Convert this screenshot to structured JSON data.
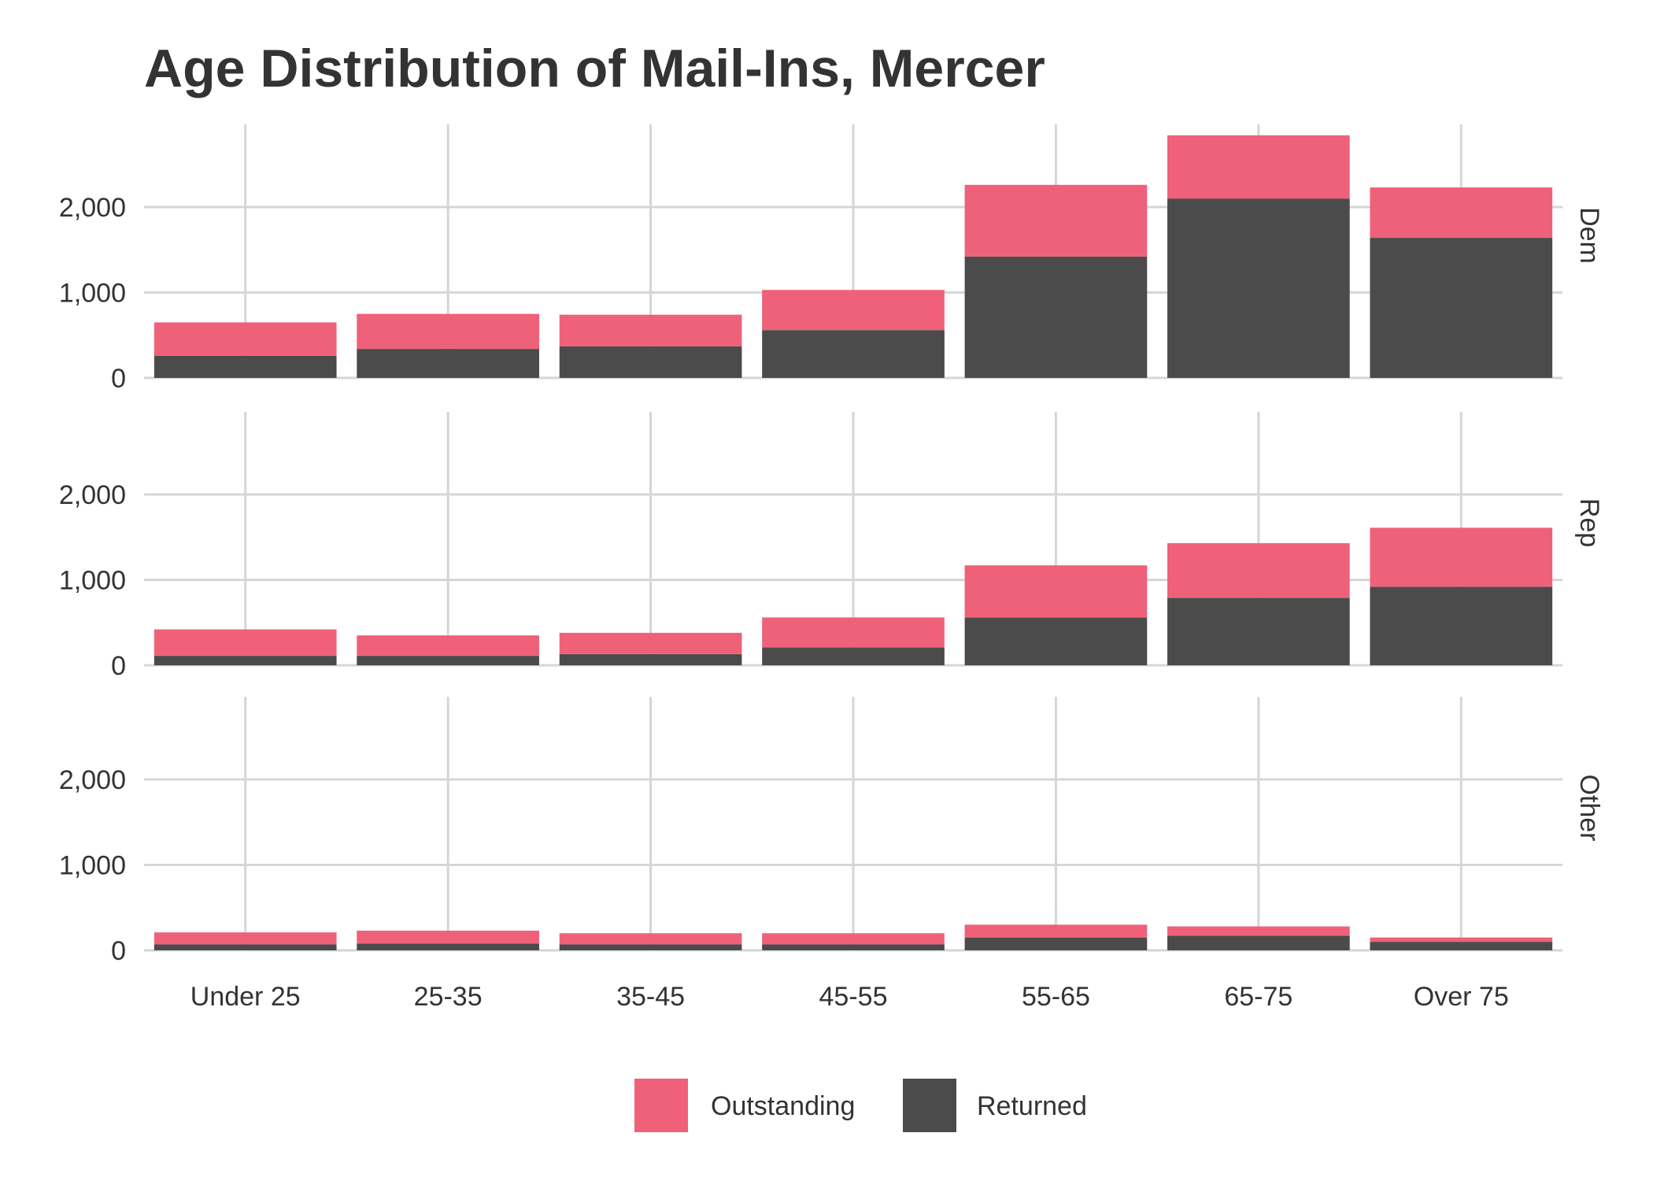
{
  "chart_data": {
    "type": "bar",
    "stacked": true,
    "title": "Age Distribution of Mail-Ins, Mercer",
    "xlabel": "",
    "ylabel": "",
    "categories": [
      "Under 25",
      "25-35",
      "35-45",
      "45-55",
      "55-65",
      "65-75",
      "Over 75"
    ],
    "ylim": [
      0,
      3000
    ],
    "yticks": [
      0,
      1000,
      2000
    ],
    "ytick_labels": [
      "0",
      "1,000",
      "2,000"
    ],
    "grid": true,
    "legend_position": "bottom",
    "legend": [
      {
        "name": "Outstanding",
        "color": "#EF6179"
      },
      {
        "name": "Returned",
        "color": "#4B4B4B"
      }
    ],
    "facets": [
      {
        "label": "Dem",
        "series": [
          {
            "name": "Returned",
            "values": [
              260,
              340,
              370,
              560,
              1420,
              2100,
              1640
            ]
          },
          {
            "name": "Outstanding",
            "values": [
              390,
              410,
              370,
              470,
              840,
              740,
              590
            ]
          }
        ]
      },
      {
        "label": "Rep",
        "series": [
          {
            "name": "Returned",
            "values": [
              110,
              110,
              130,
              210,
              560,
              790,
              920
            ]
          },
          {
            "name": "Outstanding",
            "values": [
              310,
              240,
              250,
              350,
              610,
              640,
              690
            ]
          }
        ]
      },
      {
        "label": "Other",
        "series": [
          {
            "name": "Returned",
            "values": [
              70,
              80,
              70,
              70,
              150,
              170,
              100
            ]
          },
          {
            "name": "Outstanding",
            "values": [
              140,
              150,
              130,
              130,
              150,
              110,
              50
            ]
          }
        ]
      }
    ]
  }
}
